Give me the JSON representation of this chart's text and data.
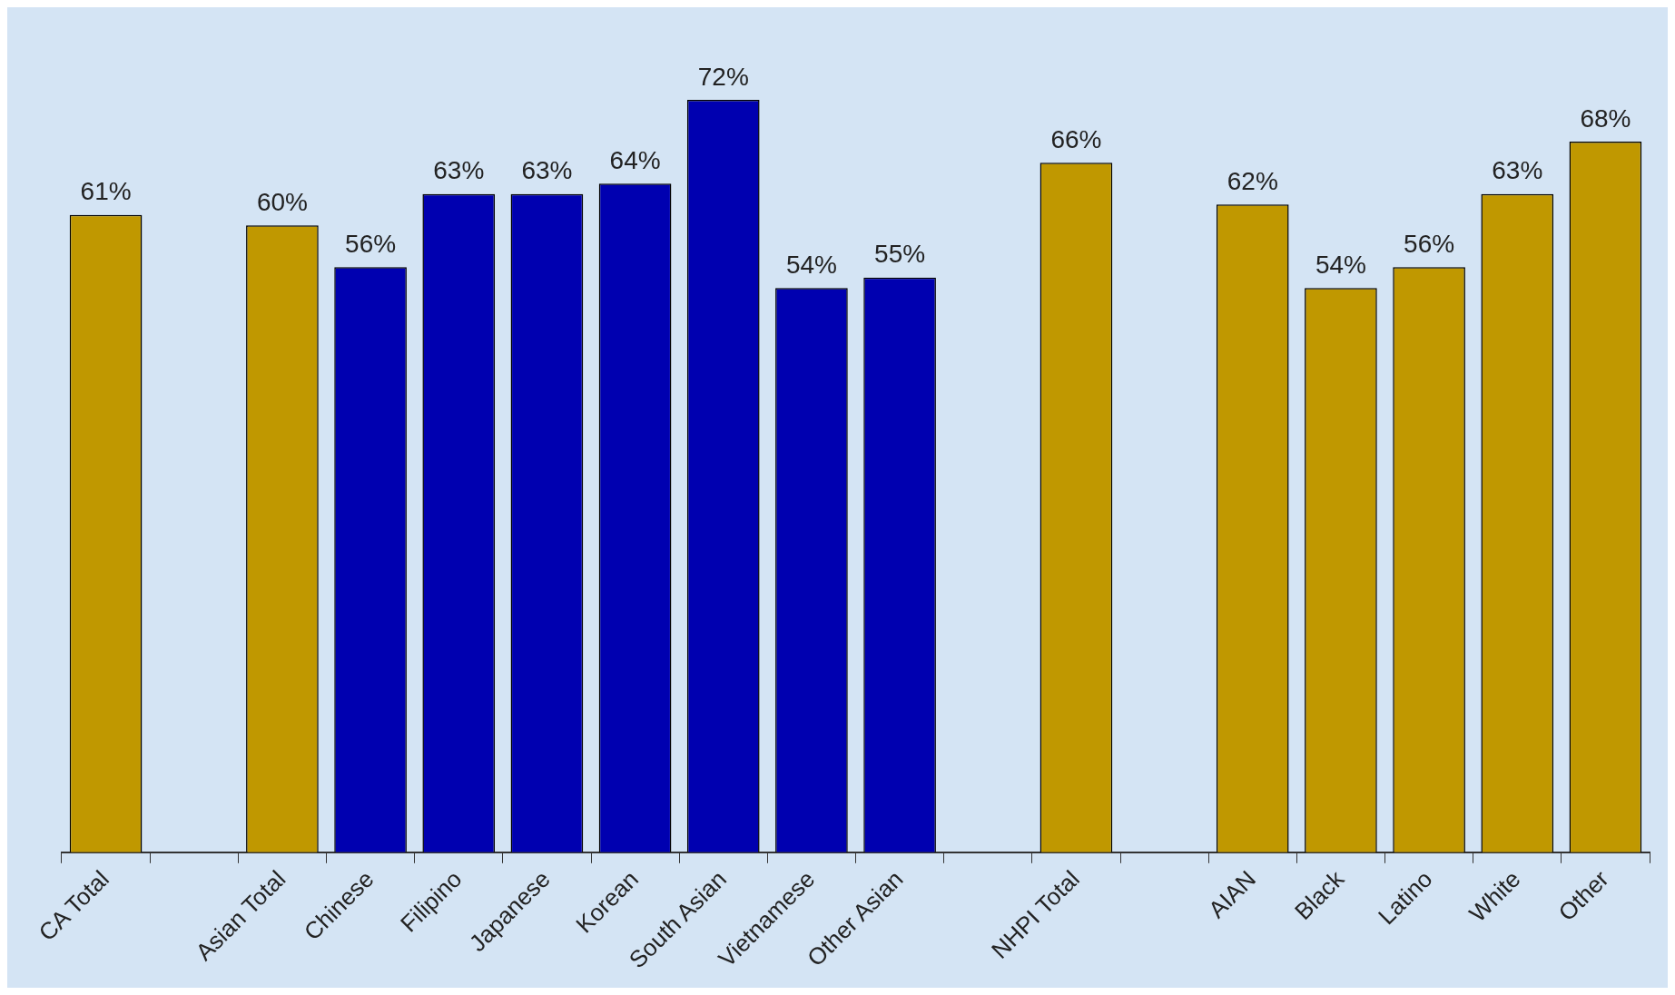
{
  "chart_data": {
    "type": "bar",
    "categories": [
      "CA Total",
      null,
      "Asian Total",
      "Chinese",
      "Filipino",
      "Japanese",
      "Korean",
      "South Asian",
      "Vietnamese",
      "Other Asian",
      null,
      "NHPI Total",
      null,
      "AIAN",
      "Black",
      "Latino",
      "White",
      "Other"
    ],
    "values": [
      61,
      null,
      60,
      56,
      63,
      63,
      64,
      72,
      54,
      55,
      null,
      66,
      null,
      62,
      54,
      56,
      63,
      68
    ],
    "value_labels": [
      "61%",
      null,
      "60%",
      "56%",
      "63%",
      "63%",
      "64%",
      "72%",
      "54%",
      "55%",
      null,
      "66%",
      null,
      "62%",
      "54%",
      "56%",
      "63%",
      "68%"
    ],
    "colors": [
      "#c09800",
      null,
      "#c09800",
      "#0000b0",
      "#0000b0",
      "#0000b0",
      "#0000b0",
      "#0000b0",
      "#0000b0",
      "#0000b0",
      null,
      "#c09800",
      null,
      "#c09800",
      "#c09800",
      "#c09800",
      "#c09800",
      "#c09800"
    ]
  }
}
